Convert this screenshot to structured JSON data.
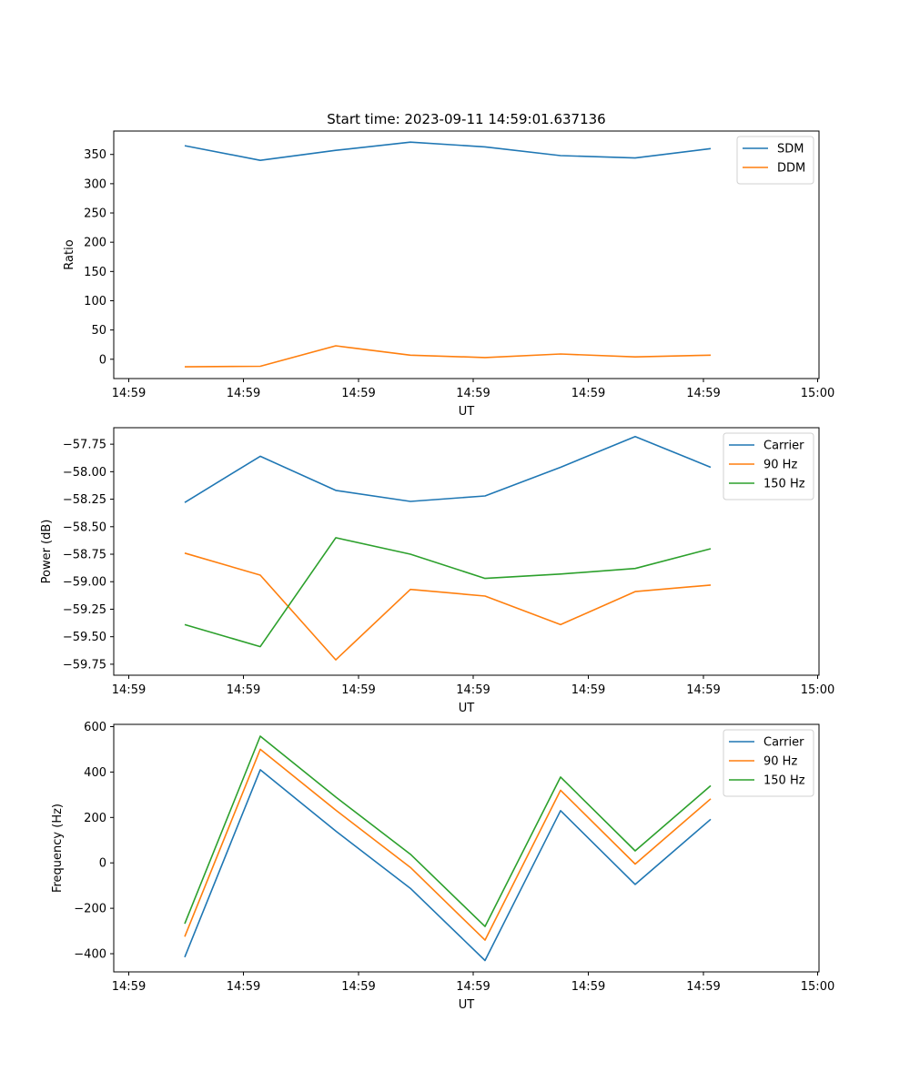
{
  "figure_title": "Start time: 2023-09-11 14:59:01.637136",
  "chart_data": [
    {
      "type": "line",
      "xlabel": "UT",
      "ylabel": "Ratio",
      "x_tick_labels": [
        "14:59",
        "14:59",
        "14:59",
        "14:59",
        "14:59",
        "14:59",
        "15:00"
      ],
      "y_ticks": [
        0,
        50,
        100,
        150,
        200,
        250,
        300,
        350
      ],
      "ylim": [
        -33,
        390
      ],
      "legend_position": "top-right",
      "series": [
        {
          "name": "SDM",
          "color": "#1f77b4",
          "values": [
            365,
            340,
            357,
            371,
            363,
            348,
            344,
            360
          ]
        },
        {
          "name": "DDM",
          "color": "#ff7f0e",
          "values": [
            -13,
            -12,
            23,
            7,
            3,
            9,
            4,
            7
          ]
        }
      ]
    },
    {
      "type": "line",
      "xlabel": "UT",
      "ylabel": "Power (dB)",
      "x_tick_labels": [
        "14:59",
        "14:59",
        "14:59",
        "14:59",
        "14:59",
        "14:59",
        "15:00"
      ],
      "y_ticks": [
        -59.75,
        -59.5,
        -59.25,
        -59.0,
        -58.75,
        -58.5,
        -58.25,
        -58.0,
        -57.75
      ],
      "y_tick_labels": [
        "−59.75",
        "−59.50",
        "−59.25",
        "−59.00",
        "−58.75",
        "−58.50",
        "−58.25",
        "−58.00",
        "−57.75"
      ],
      "ylim": [
        -59.85,
        -57.6
      ],
      "legend_position": "top-right",
      "series": [
        {
          "name": "Carrier",
          "color": "#1f77b4",
          "values": [
            -58.28,
            -57.86,
            -58.17,
            -58.27,
            -58.22,
            -57.96,
            -57.68,
            -57.96
          ]
        },
        {
          "name": "90 Hz",
          "color": "#ff7f0e",
          "values": [
            -58.74,
            -58.94,
            -59.71,
            -59.07,
            -59.13,
            -59.39,
            -59.09,
            -59.03
          ]
        },
        {
          "name": "150 Hz",
          "color": "#2ca02c",
          "values": [
            -59.39,
            -59.59,
            -58.6,
            -58.75,
            -58.97,
            -58.93,
            -58.88,
            -58.7
          ]
        }
      ]
    },
    {
      "type": "line",
      "xlabel": "UT",
      "ylabel": "Frequency (Hz)",
      "x_tick_labels": [
        "14:59",
        "14:59",
        "14:59",
        "14:59",
        "14:59",
        "14:59",
        "15:00"
      ],
      "y_ticks": [
        -400,
        -200,
        0,
        200,
        400,
        600
      ],
      "y_tick_labels": [
        "−400",
        "−200",
        "0",
        "200",
        "400",
        "600"
      ],
      "ylim": [
        -480,
        610
      ],
      "legend_position": "top-right",
      "series": [
        {
          "name": "Carrier",
          "color": "#1f77b4",
          "values": [
            -415,
            410,
            140,
            -112,
            -430,
            230,
            -95,
            192
          ]
        },
        {
          "name": "90 Hz",
          "color": "#ff7f0e",
          "values": [
            -325,
            500,
            232,
            -20,
            -340,
            320,
            -5,
            282
          ]
        },
        {
          "name": "150 Hz",
          "color": "#2ca02c",
          "values": [
            -268,
            558,
            290,
            38,
            -280,
            378,
            53,
            340
          ]
        }
      ]
    }
  ]
}
